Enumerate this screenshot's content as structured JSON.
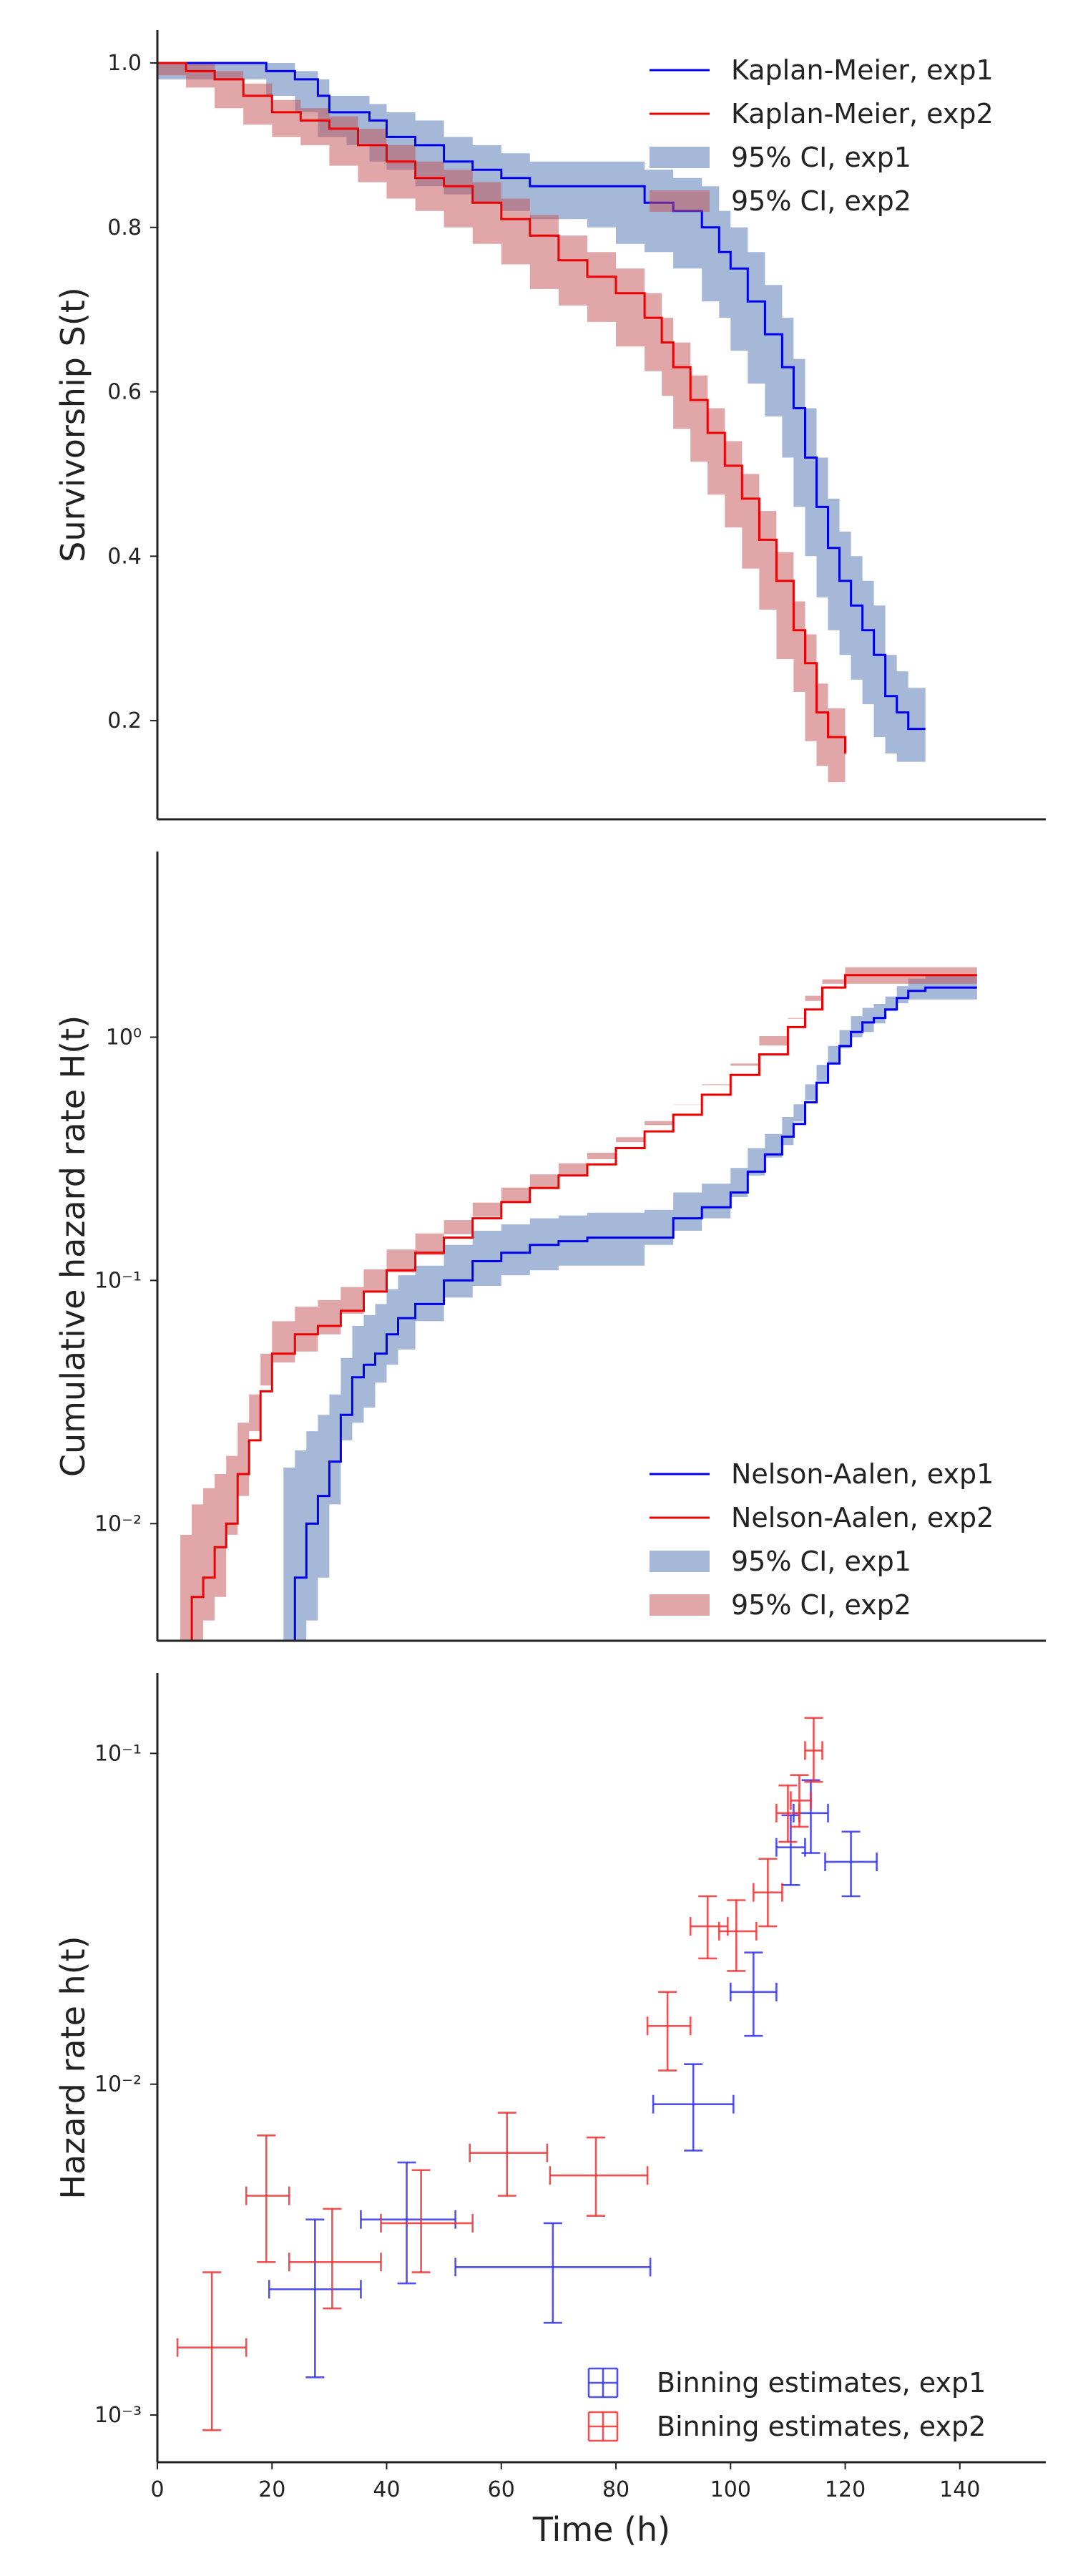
{
  "chart_data": [
    {
      "type": "line",
      "ylabel": "Survivorship S(t)",
      "xlim": [
        0,
        155
      ],
      "ylim": [
        0.08,
        1.04
      ],
      "yscale": "linear",
      "yticks": [
        0.2,
        0.4,
        0.6,
        0.8,
        1.0
      ],
      "yticklabels": [
        "0.2",
        "0.4",
        "0.6",
        "0.8",
        "1.0"
      ],
      "legend_position": "top-right",
      "grid": false,
      "series": [
        {
          "name": "Kaplan-Meier, exp1",
          "color": "#0000ee",
          "ci_name": "95% CI, exp1",
          "ci_color": "#4c72b0",
          "x": [
            0,
            19,
            24,
            28,
            30,
            33,
            37,
            40,
            45,
            50,
            55,
            60,
            65,
            70,
            75,
            80,
            85,
            90,
            95,
            98,
            100,
            103,
            106,
            109,
            111,
            113,
            115,
            117,
            119,
            121,
            123,
            125,
            127,
            129,
            131,
            134
          ],
          "y": [
            1.0,
            0.99,
            0.98,
            0.96,
            0.94,
            0.94,
            0.93,
            0.91,
            0.9,
            0.88,
            0.87,
            0.86,
            0.85,
            0.85,
            0.85,
            0.85,
            0.83,
            0.82,
            0.8,
            0.77,
            0.75,
            0.71,
            0.67,
            0.63,
            0.58,
            0.52,
            0.46,
            0.41,
            0.37,
            0.34,
            0.31,
            0.28,
            0.23,
            0.21,
            0.19,
            0.19
          ],
          "ci_lower": [
            1.0,
            0.98,
            0.96,
            0.94,
            0.91,
            0.91,
            0.9,
            0.88,
            0.87,
            0.85,
            0.84,
            0.83,
            0.82,
            0.81,
            0.81,
            0.8,
            0.78,
            0.77,
            0.75,
            0.71,
            0.69,
            0.65,
            0.61,
            0.57,
            0.52,
            0.46,
            0.4,
            0.35,
            0.31,
            0.28,
            0.25,
            0.22,
            0.18,
            0.16,
            0.15,
            0.15
          ],
          "ci_upper": [
            1.0,
            1.0,
            0.99,
            0.98,
            0.96,
            0.96,
            0.95,
            0.94,
            0.93,
            0.91,
            0.9,
            0.89,
            0.88,
            0.88,
            0.88,
            0.88,
            0.87,
            0.86,
            0.85,
            0.82,
            0.8,
            0.77,
            0.73,
            0.69,
            0.64,
            0.58,
            0.52,
            0.47,
            0.43,
            0.4,
            0.37,
            0.34,
            0.28,
            0.26,
            0.24,
            0.24
          ]
        },
        {
          "name": "Kaplan-Meier, exp2",
          "color": "#ee0000",
          "ci_name": "95% CI, exp2",
          "ci_color": "#c44e52",
          "x": [
            0,
            5,
            10,
            15,
            20,
            25,
            30,
            35,
            40,
            45,
            50,
            55,
            60,
            65,
            70,
            75,
            80,
            85,
            88,
            90,
            93,
            96,
            99,
            102,
            105,
            108,
            111,
            113,
            115,
            117,
            120
          ],
          "y": [
            1.0,
            0.99,
            0.98,
            0.96,
            0.94,
            0.93,
            0.92,
            0.9,
            0.88,
            0.86,
            0.85,
            0.83,
            0.81,
            0.79,
            0.76,
            0.74,
            0.72,
            0.69,
            0.66,
            0.63,
            0.59,
            0.55,
            0.51,
            0.47,
            0.42,
            0.37,
            0.31,
            0.27,
            0.21,
            0.18,
            0.16
          ],
          "ci_lower": [
            1.0,
            0.985,
            0.97,
            0.945,
            0.925,
            0.91,
            0.9,
            0.875,
            0.855,
            0.835,
            0.82,
            0.8,
            0.78,
            0.755,
            0.725,
            0.705,
            0.685,
            0.655,
            0.625,
            0.595,
            0.555,
            0.515,
            0.475,
            0.435,
            0.385,
            0.335,
            0.275,
            0.235,
            0.175,
            0.145,
            0.125
          ],
          "ci_upper": [
            1.0,
            1.0,
            0.99,
            0.975,
            0.955,
            0.945,
            0.935,
            0.92,
            0.9,
            0.88,
            0.87,
            0.855,
            0.835,
            0.815,
            0.79,
            0.77,
            0.75,
            0.72,
            0.69,
            0.66,
            0.62,
            0.58,
            0.54,
            0.5,
            0.455,
            0.405,
            0.345,
            0.305,
            0.245,
            0.215,
            0.195
          ]
        }
      ]
    },
    {
      "type": "line",
      "ylabel": "Cumulative hazard rate H(t)",
      "xlim": [
        0,
        155
      ],
      "ylim": [
        0.0033,
        5.8
      ],
      "yscale": "log",
      "yticks": [
        0.01,
        0.1,
        1
      ],
      "yticklabels": [
        "10⁻²",
        "10⁻¹",
        "10⁰"
      ],
      "legend_position": "lower-right",
      "grid": false,
      "series": [
        {
          "name": "Nelson-Aalen, exp1",
          "color": "#0000ee",
          "ci_name": "95% CI, exp1",
          "ci_color": "#4c72b0",
          "x": [
            22,
            24,
            26,
            28,
            30,
            32,
            34,
            36,
            38,
            40,
            42,
            45,
            50,
            55,
            60,
            65,
            70,
            75,
            80,
            85,
            90,
            95,
            100,
            103,
            106,
            109,
            111,
            113,
            115,
            117,
            119,
            121,
            123,
            125,
            127,
            129,
            131,
            134,
            143
          ],
          "y": [
            0.003,
            0.006,
            0.01,
            0.013,
            0.018,
            0.028,
            0.04,
            0.045,
            0.05,
            0.06,
            0.07,
            0.08,
            0.1,
            0.12,
            0.13,
            0.14,
            0.145,
            0.15,
            0.15,
            0.15,
            0.18,
            0.2,
            0.23,
            0.28,
            0.33,
            0.39,
            0.44,
            0.54,
            0.65,
            0.78,
            0.92,
            1.05,
            1.15,
            1.2,
            1.3,
            1.45,
            1.55,
            1.6,
            1.6
          ],
          "ci_lower": [
            0.001,
            0.002,
            0.003,
            0.004,
            0.006,
            0.012,
            0.022,
            0.026,
            0.03,
            0.038,
            0.045,
            0.052,
            0.068,
            0.085,
            0.095,
            0.105,
            0.11,
            0.115,
            0.115,
            0.115,
            0.14,
            0.16,
            0.18,
            0.22,
            0.27,
            0.32,
            0.36,
            0.45,
            0.55,
            0.66,
            0.78,
            0.9,
            1.0,
            1.05,
            1.14,
            1.28,
            1.38,
            1.43,
            1.43
          ],
          "ci_upper": [
            0.017,
            0.02,
            0.024,
            0.028,
            0.034,
            0.048,
            0.065,
            0.072,
            0.08,
            0.092,
            0.105,
            0.115,
            0.14,
            0.16,
            0.17,
            0.18,
            0.185,
            0.19,
            0.19,
            0.195,
            0.23,
            0.25,
            0.29,
            0.35,
            0.4,
            0.47,
            0.53,
            0.64,
            0.77,
            0.92,
            1.07,
            1.22,
            1.32,
            1.37,
            1.47,
            1.62,
            1.74,
            1.8,
            1.8
          ]
        },
        {
          "name": "Nelson-Aalen, exp2",
          "color": "#ee0000",
          "ci_name": "95% CI, exp2",
          "ci_color": "#c44e52",
          "x": [
            4,
            6,
            8,
            10,
            12,
            14,
            16,
            18,
            20,
            24,
            28,
            32,
            36,
            40,
            45,
            50,
            55,
            60,
            65,
            70,
            75,
            80,
            85,
            90,
            95,
            100,
            105,
            110,
            113,
            116,
            120,
            143
          ],
          "y": [
            0.003,
            0.005,
            0.006,
            0.008,
            0.01,
            0.016,
            0.022,
            0.035,
            0.05,
            0.06,
            0.065,
            0.075,
            0.09,
            0.11,
            0.13,
            0.15,
            0.18,
            0.21,
            0.24,
            0.27,
            0.3,
            0.35,
            0.41,
            0.48,
            0.58,
            0.7,
            0.85,
            1.1,
            1.3,
            1.6,
            1.8,
            1.8
          ],
          "ci_lower": [
            0.001,
            0.002,
            0.003,
            0.004,
            0.005,
            0.009,
            0.013,
            0.024,
            0.037,
            0.046,
            0.051,
            0.06,
            0.073,
            0.09,
            0.108,
            0.127,
            0.155,
            0.183,
            0.211,
            0.24,
            0.268,
            0.315,
            0.37,
            0.435,
            0.528,
            0.64,
            0.78,
            1.01,
            1.2,
            1.48,
            1.66,
            1.66
          ],
          "ci_upper": [
            0.009,
            0.012,
            0.014,
            0.016,
            0.019,
            0.026,
            0.034,
            0.05,
            0.068,
            0.078,
            0.083,
            0.094,
            0.111,
            0.134,
            0.156,
            0.177,
            0.209,
            0.241,
            0.273,
            0.303,
            0.335,
            0.388,
            0.452,
            0.527,
            0.635,
            0.763,
            0.925,
            1.19,
            1.41,
            1.73,
            1.94,
            1.94
          ]
        }
      ]
    },
    {
      "type": "scatter",
      "ylabel": "Hazard rate h(t)",
      "xlabel": "Time (h)",
      "xlim": [
        0,
        155
      ],
      "ylim": [
        0.00072,
        0.175
      ],
      "yscale": "log",
      "xticks": [
        0,
        20,
        40,
        60,
        80,
        100,
        120,
        140
      ],
      "xticklabels": [
        "0",
        "20",
        "40",
        "60",
        "80",
        "100",
        "120",
        "140"
      ],
      "yticks": [
        0.001,
        0.01,
        0.1
      ],
      "yticklabels": [
        "10⁻³",
        "10⁻²",
        "10⁻¹"
      ],
      "legend_position": "lower-right",
      "grid": false,
      "series": [
        {
          "name": "Binning estimates, exp1",
          "color": "#3333ee",
          "points": [
            {
              "x": 27.5,
              "xerr": [
                19.5,
                35.5
              ],
              "y": 0.0024,
              "yerr": [
                0.0013,
                0.0039
              ]
            },
            {
              "x": 43.5,
              "xerr": [
                35.5,
                52
              ],
              "y": 0.0039,
              "yerr": [
                0.0025,
                0.0058
              ]
            },
            {
              "x": 69,
              "xerr": [
                52,
                86
              ],
              "y": 0.0028,
              "yerr": [
                0.0019,
                0.0038
              ]
            },
            {
              "x": 93.5,
              "xerr": [
                86.5,
                100.5
              ],
              "y": 0.0087,
              "yerr": [
                0.0063,
                0.0115
              ]
            },
            {
              "x": 104,
              "xerr": [
                100,
                108
              ],
              "y": 0.019,
              "yerr": [
                0.014,
                0.025
              ]
            },
            {
              "x": 110.5,
              "xerr": [
                108,
                113
              ],
              "y": 0.052,
              "yerr": [
                0.04,
                0.065
              ]
            },
            {
              "x": 114,
              "xerr": [
                111,
                117
              ],
              "y": 0.066,
              "yerr": [
                0.05,
                0.083
              ]
            },
            {
              "x": 121,
              "xerr": [
                116.5,
                125.5
              ],
              "y": 0.047,
              "yerr": [
                0.037,
                0.058
              ]
            }
          ]
        },
        {
          "name": "Binning estimates, exp2",
          "color": "#ee3333",
          "points": [
            {
              "x": 9.5,
              "xerr": [
                3.5,
                15.5
              ],
              "y": 0.0016,
              "yerr": [
                0.0009,
                0.0027
              ]
            },
            {
              "x": 19,
              "xerr": [
                15.5,
                23
              ],
              "y": 0.0046,
              "yerr": [
                0.0029,
                0.007
              ]
            },
            {
              "x": 30.5,
              "xerr": [
                23,
                39
              ],
              "y": 0.0029,
              "yerr": [
                0.0021,
                0.0042
              ]
            },
            {
              "x": 46,
              "xerr": [
                39,
                55
              ],
              "y": 0.0038,
              "yerr": [
                0.0027,
                0.0055
              ]
            },
            {
              "x": 61,
              "xerr": [
                54.5,
                68
              ],
              "y": 0.0062,
              "yerr": [
                0.0046,
                0.0082
              ]
            },
            {
              "x": 76.5,
              "xerr": [
                68.5,
                85.5
              ],
              "y": 0.0053,
              "yerr": [
                0.004,
                0.0069
              ]
            },
            {
              "x": 89,
              "xerr": [
                85.5,
                93
              ],
              "y": 0.015,
              "yerr": [
                0.011,
                0.019
              ]
            },
            {
              "x": 96,
              "xerr": [
                93,
                99.5
              ],
              "y": 0.03,
              "yerr": [
                0.024,
                0.037
              ]
            },
            {
              "x": 101,
              "xerr": [
                98,
                104.5
              ],
              "y": 0.029,
              "yerr": [
                0.022,
                0.036
              ]
            },
            {
              "x": 106.5,
              "xerr": [
                104,
                109
              ],
              "y": 0.038,
              "yerr": [
                0.03,
                0.048
              ]
            },
            {
              "x": 110,
              "xerr": [
                108,
                112
              ],
              "y": 0.066,
              "yerr": [
                0.054,
                0.08
              ]
            },
            {
              "x": 112,
              "xerr": [
                110.5,
                114
              ],
              "y": 0.072,
              "yerr": [
                0.06,
                0.086
              ]
            },
            {
              "x": 114.5,
              "xerr": [
                113,
                116
              ],
              "y": 0.102,
              "yerr": [
                0.082,
                0.128
              ]
            }
          ]
        }
      ]
    }
  ]
}
